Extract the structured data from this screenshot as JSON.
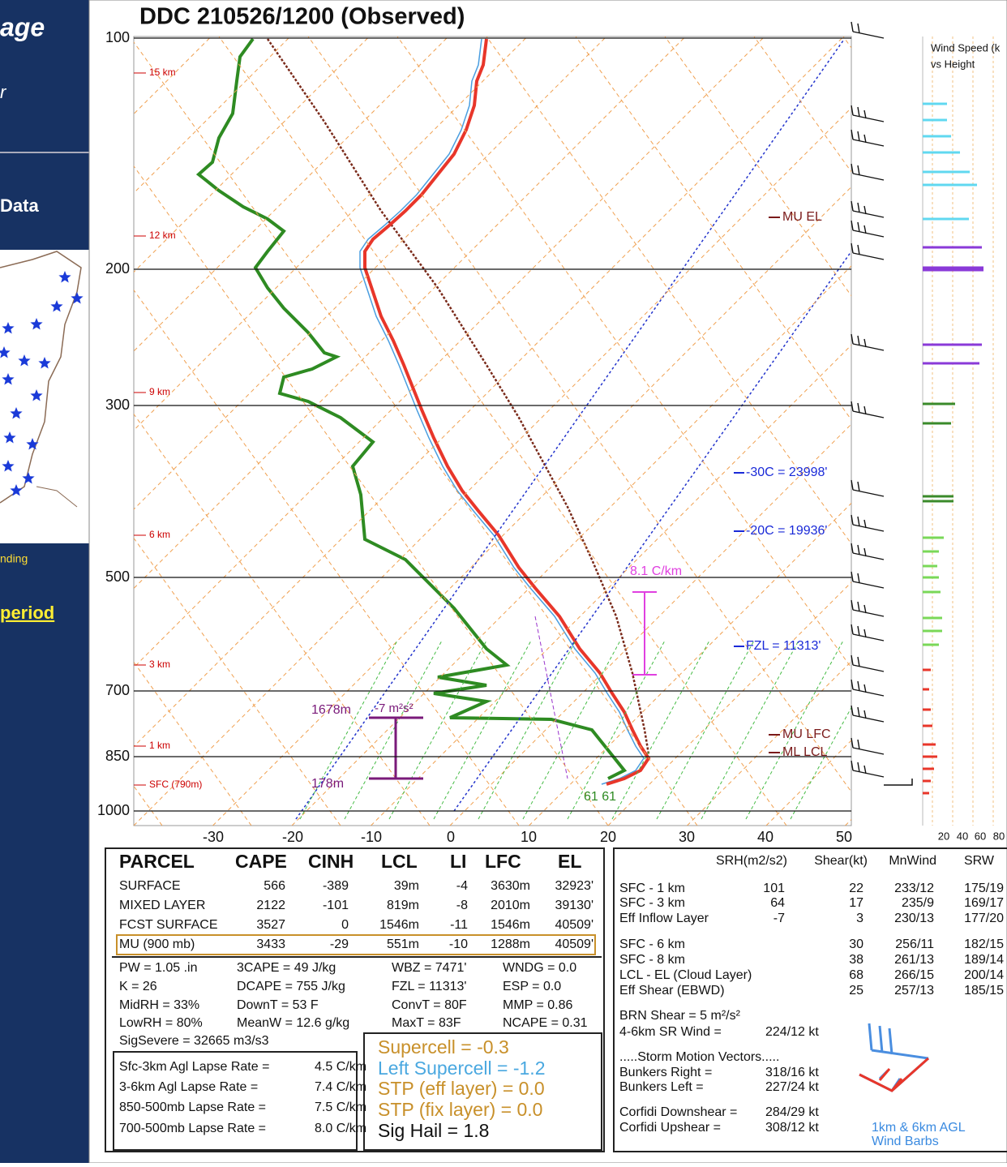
{
  "sidebar": {
    "heading": "age",
    "sub": "r",
    "section": "Data",
    "link_text": "nding",
    "period_link": "period"
  },
  "title": "DDC  210526/1200  (Observed)",
  "axes": {
    "pressure_labels": [
      "100",
      "200",
      "300",
      "500",
      "700",
      "850",
      "1000"
    ],
    "temp_labels": [
      "-30",
      "-20",
      "-10",
      "0",
      "10",
      "20",
      "30",
      "40",
      "50"
    ],
    "height_labels": [
      "15 km",
      "12 km",
      "9 km",
      "6 km",
      "3 km",
      "1 km",
      "SFC (790m)"
    ],
    "wind_title": [
      "Wind Speed (k",
      "vs Height"
    ],
    "wind_ticks": [
      "20",
      "40",
      "60",
      "80"
    ]
  },
  "annotations": {
    "mu_el": "MU  EL",
    "mu_lfc": "MU  LFC",
    "ml_lcl": "ML  LCL",
    "t30": "-30C = 23998'",
    "t20": "-20C = 19936'",
    "fzl": "FZL = 11313'",
    "lapse": "8.1 C/km",
    "inflow_top": "1678m",
    "inflow_srh": "-7 m²s²",
    "inflow_bottom": "178m",
    "sfc_dew": "61 61"
  },
  "parcel_table": {
    "headers": [
      "PARCEL",
      "CAPE",
      "CINH",
      "LCL",
      "LI",
      "LFC",
      "EL"
    ],
    "rows": [
      [
        "SURFACE",
        "566",
        "-389",
        "39m",
        "-4",
        "3630m",
        "32923'"
      ],
      [
        "MIXED LAYER",
        "2122",
        "-101",
        "819m",
        "-8",
        "2010m",
        "39130'"
      ],
      [
        "FCST SURFACE",
        "3527",
        "0",
        "1546m",
        "-11",
        "1546m",
        "40509'"
      ],
      [
        "MU   (900 mb)",
        "3433",
        "-29",
        "551m",
        "-10",
        "1288m",
        "40509'"
      ]
    ]
  },
  "indices": {
    "rows": [
      [
        "PW = 1.05 .in",
        "3CAPE = 49 J/kg",
        "WBZ = 7471'",
        "WNDG = 0.0"
      ],
      [
        "K = 26",
        "DCAPE = 755 J/kg",
        "FZL = 11313'",
        "ESP = 0.0"
      ],
      [
        "MidRH = 33%",
        "DownT = 53 F",
        "ConvT = 80F",
        "MMP = 0.86"
      ],
      [
        "LowRH = 80%",
        "MeanW = 12.6 g/kg",
        "MaxT = 83F",
        "NCAPE = 0.31"
      ]
    ],
    "sig_severe": "SigSevere = 32665 m3/s3"
  },
  "lapse_rates": [
    [
      "Sfc-3km Agl Lapse Rate =",
      "4.5 C/km"
    ],
    [
      "3-6km Agl Lapse Rate =",
      "7.4 C/km"
    ],
    [
      "850-500mb Lapse Rate =",
      "7.5 C/km"
    ],
    [
      "700-500mb Lapse Rate =",
      "8.0 C/km"
    ]
  ],
  "composite": [
    "Supercell = -0.3",
    "Left Supercell = -1.2",
    "STP (eff layer) = 0.0",
    "STP (fix layer) = 0.0",
    "Sig Hail = 1.8"
  ],
  "shear_table": {
    "headers": [
      "SRH(m2/s2)",
      "Shear(kt)",
      "MnWind",
      "SRW"
    ],
    "rows": [
      {
        "label": "SFC - 1 km",
        "srh": "101",
        "shear": "22",
        "mnwind": "233/12",
        "srw": "175/19"
      },
      {
        "label": "SFC - 3 km",
        "srh": "64",
        "shear": "17",
        "mnwind": "235/9",
        "srw": "169/17"
      },
      {
        "label": "Eff Inflow Layer",
        "srh": "-7",
        "shear": "3",
        "mnwind": "230/13",
        "srw": "177/20"
      },
      {
        "label": "SFC - 6 km",
        "shear": "30",
        "mnwind": "256/11",
        "srw": "182/15"
      },
      {
        "label": "SFC - 8 km",
        "shear": "38",
        "mnwind": "261/13",
        "srw": "189/14"
      },
      {
        "label": "LCL - EL (Cloud Layer)",
        "shear": "68",
        "mnwind": "266/15",
        "srw": "200/14"
      },
      {
        "label": "Eff Shear (EBWD)",
        "shear": "25",
        "mnwind": "257/13",
        "srw": "185/15"
      }
    ]
  },
  "misc": {
    "brn": "BRN Shear =  5 m²/s²",
    "sr_wind": [
      "4-6km SR Wind =",
      "224/12 kt"
    ],
    "storm_motion": ".....Storm Motion Vectors.....",
    "bunkers_right": [
      "Bunkers Right =",
      "318/16 kt"
    ],
    "bunkers_left": [
      "Bunkers Left =",
      "227/24 kt"
    ],
    "corfidi_down": [
      "Corfidi Downshear =",
      "284/29 kt"
    ],
    "corfidi_up": [
      "Corfidi Upshear =",
      "308/12 kt"
    ],
    "barb_note": [
      "1km & 6km AGL",
      "Wind Barbs"
    ]
  }
}
